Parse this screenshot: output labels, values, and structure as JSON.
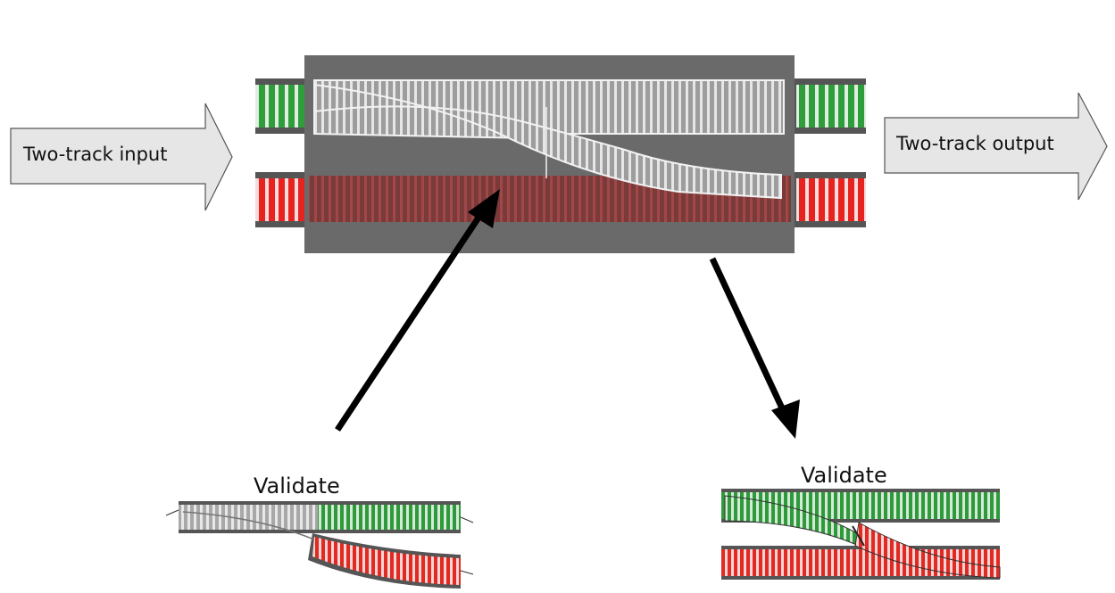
{
  "input_arrow": {
    "label": "Two-track input"
  },
  "output_arrow": {
    "label": "Two-track output"
  },
  "validate_left": {
    "label": "Validate"
  },
  "validate_right": {
    "label": "Validate"
  },
  "colors": {
    "green_track": "#1e8a2a",
    "red_track": "#e31b1b",
    "switch_panel": "#6a6a6a",
    "grey_track": "#bdbdbd",
    "arrow_fill": "#e6e6e6"
  }
}
